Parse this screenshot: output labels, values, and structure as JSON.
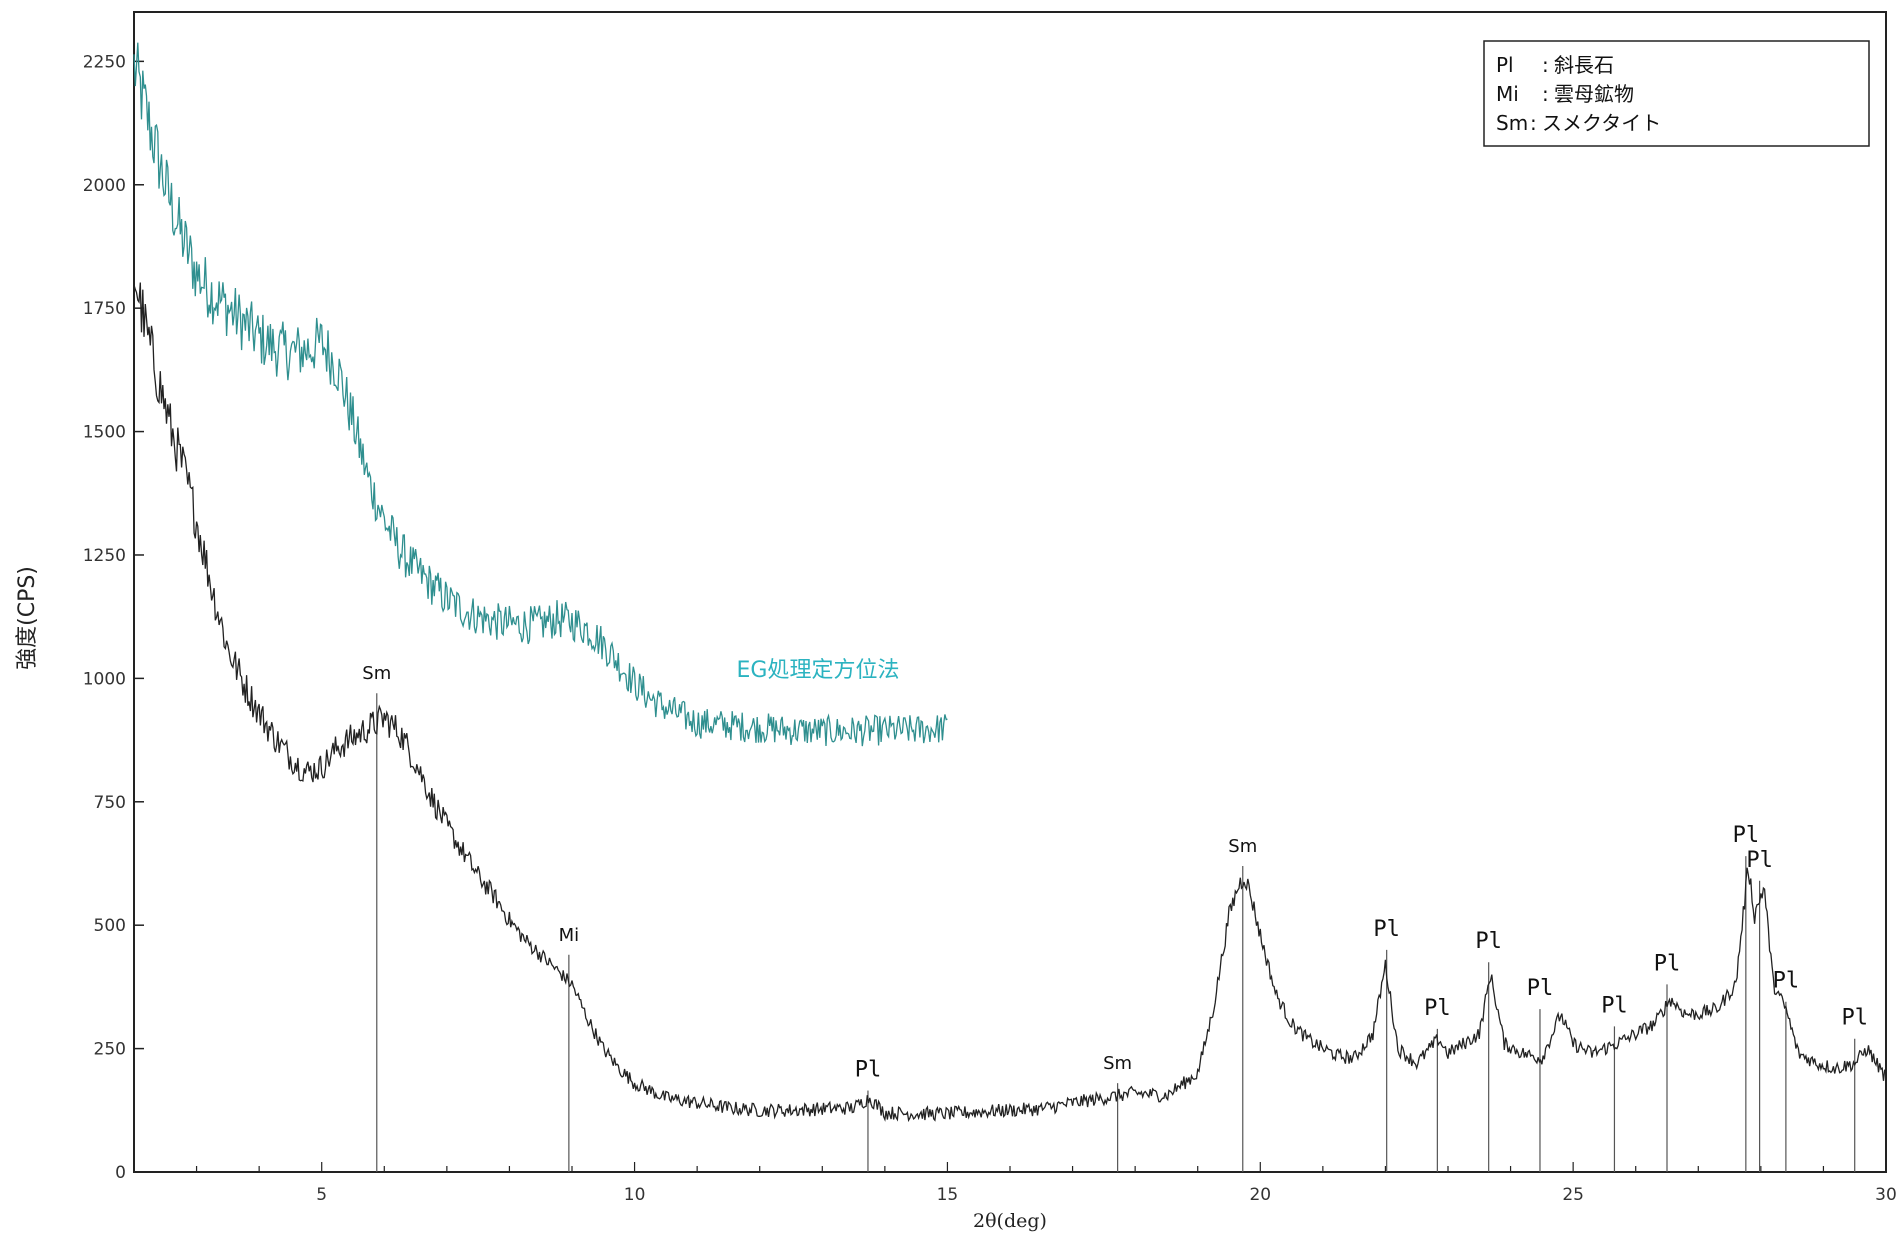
{
  "chart_data": {
    "type": "line",
    "xlabel": "2θ(deg)",
    "ylabel": "強度(CPS)",
    "xlim": [
      2,
      30
    ],
    "ylim": [
      0,
      2350
    ],
    "x_ticks": [
      5,
      10,
      15,
      20,
      25,
      30
    ],
    "y_ticks": [
      0,
      250,
      500,
      750,
      1000,
      1250,
      1500,
      1750,
      2000,
      2250
    ],
    "legend": {
      "position": "top-right",
      "entries": [
        {
          "abbr": "Pl",
          "sep": ":",
          "name": "斜長石"
        },
        {
          "abbr": "Mi",
          "sep": ":",
          "name": "雲母鉱物"
        },
        {
          "abbr": "Sm",
          "sep": ":",
          "name": "スメクタイト"
        }
      ]
    },
    "series": [
      {
        "label": "EG処理定方位法",
        "color": "#2f8f8f",
        "label_color": "#2bb3c0",
        "x": [
          2.0,
          2.25,
          2.5,
          2.75,
          3.0,
          3.25,
          3.5,
          3.75,
          4.0,
          4.25,
          4.5,
          4.75,
          5.0,
          5.25,
          5.5,
          5.75,
          6.0,
          6.25,
          6.5,
          6.75,
          7.0,
          7.25,
          7.5,
          7.75,
          8.0,
          8.25,
          8.5,
          8.75,
          9.0,
          9.25,
          9.5,
          9.75,
          10.0,
          10.25,
          10.5,
          10.75,
          11.0,
          11.5,
          12.0,
          12.5,
          13.0,
          13.5,
          14.0,
          14.5,
          15.0
        ],
        "y": [
          2240,
          2120,
          2000,
          1900,
          1820,
          1780,
          1750,
          1720,
          1690,
          1670,
          1660,
          1665,
          1680,
          1630,
          1520,
          1400,
          1320,
          1260,
          1220,
          1190,
          1160,
          1140,
          1125,
          1115,
          1110,
          1108,
          1110,
          1120,
          1115,
          1100,
          1070,
          1030,
          990,
          960,
          940,
          925,
          910,
          905,
          900,
          895,
          893,
          893,
          895,
          895,
          900
        ]
      },
      {
        "label": "",
        "color": "#222222",
        "x": [
          2.0,
          2.2,
          2.4,
          2.6,
          2.8,
          3.0,
          3.25,
          3.5,
          3.75,
          4.0,
          4.25,
          4.5,
          4.75,
          5.0,
          5.25,
          5.5,
          5.75,
          6.0,
          6.25,
          6.5,
          6.75,
          7.0,
          7.25,
          7.5,
          7.75,
          8.0,
          8.25,
          8.5,
          8.75,
          9.0,
          9.25,
          9.5,
          9.75,
          10.0,
          10.25,
          10.5,
          11.0,
          11.5,
          12.0,
          12.5,
          13.0,
          13.5,
          13.75,
          14.0,
          14.5,
          15.0,
          15.5,
          16.0,
          16.5,
          17.0,
          17.5,
          17.75,
          18.0,
          18.5,
          19.0,
          19.25,
          19.5,
          19.65,
          19.75,
          19.85,
          20.0,
          20.25,
          20.5,
          20.75,
          21.0,
          21.25,
          21.5,
          21.8,
          22.0,
          22.2,
          22.5,
          22.85,
          23.0,
          23.25,
          23.5,
          23.68,
          23.9,
          24.2,
          24.5,
          24.8,
          25.0,
          25.3,
          25.7,
          26.0,
          26.3,
          26.55,
          26.8,
          27.0,
          27.3,
          27.6,
          27.8,
          27.9,
          28.05,
          28.2,
          28.4,
          28.6,
          28.9,
          29.2,
          29.5,
          29.7,
          30.0
        ],
        "y": [
          1820,
          1700,
          1600,
          1500,
          1420,
          1320,
          1180,
          1060,
          990,
          930,
          880,
          840,
          810,
          820,
          860,
          880,
          900,
          920,
          890,
          830,
          760,
          700,
          650,
          600,
          560,
          510,
          470,
          440,
          410,
          380,
          310,
          250,
          210,
          180,
          165,
          150,
          140,
          130,
          125,
          125,
          128,
          130,
          150,
          120,
          118,
          118,
          122,
          125,
          128,
          140,
          150,
          155,
          160,
          155,
          200,
          330,
          520,
          580,
          600,
          560,
          480,
          360,
          300,
          270,
          250,
          235,
          230,
          280,
          420,
          250,
          220,
          270,
          240,
          260,
          280,
          400,
          260,
          240,
          230,
          320,
          260,
          240,
          260,
          280,
          300,
          350,
          320,
          320,
          330,
          380,
          620,
          520,
          580,
          380,
          330,
          240,
          220,
          210,
          220,
          250,
          190
        ]
      }
    ],
    "annotations": [
      {
        "label": "Sm",
        "x": 5.88,
        "y": 970
      },
      {
        "label": "Mi",
        "x": 8.95,
        "y": 440
      },
      {
        "label": "Pl",
        "x": 13.73,
        "y": 165
      },
      {
        "label": "Sm",
        "x": 17.72,
        "y": 180
      },
      {
        "label": "Sm",
        "x": 19.72,
        "y": 620
      },
      {
        "label": "Pl",
        "x": 22.02,
        "y": 450
      },
      {
        "label": "Pl",
        "x": 22.83,
        "y": 290
      },
      {
        "label": "Pl",
        "x": 23.65,
        "y": 425
      },
      {
        "label": "Pl",
        "x": 24.47,
        "y": 330
      },
      {
        "label": "Pl",
        "x": 25.66,
        "y": 295
      },
      {
        "label": "Pl",
        "x": 26.5,
        "y": 380
      },
      {
        "label": "Pl",
        "x": 27.76,
        "y": 640
      },
      {
        "label": "Pl",
        "x": 27.98,
        "y": 590
      },
      {
        "label": "Pl",
        "x": 28.4,
        "y": 345
      },
      {
        "label": "Pl",
        "x": 29.5,
        "y": 270
      }
    ]
  }
}
